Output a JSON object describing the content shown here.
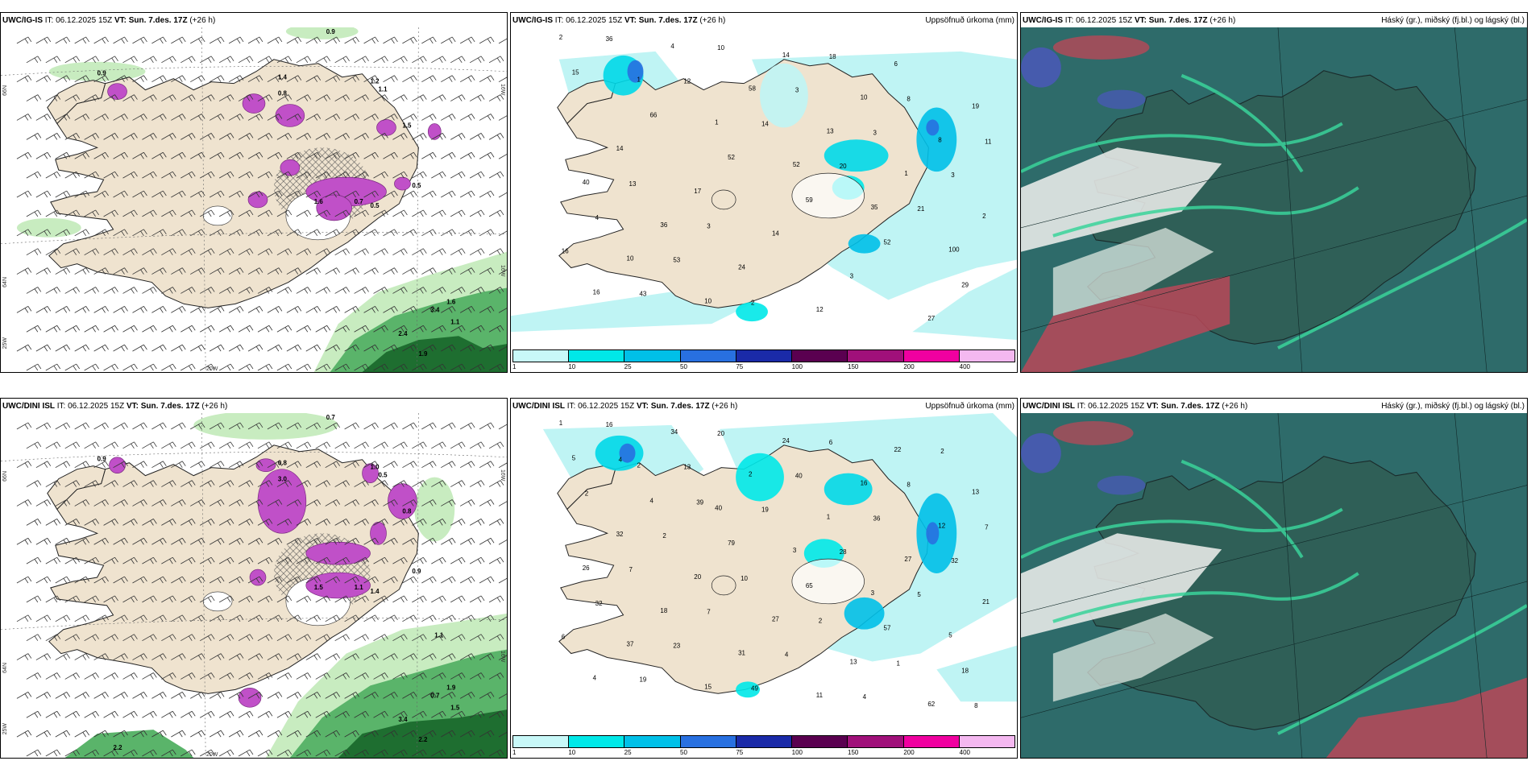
{
  "panels": [
    {
      "model": "UWC/IG-IS",
      "it_label": "IT:",
      "it_value": "06.12.2025 15Z",
      "vt_label": "VT:",
      "vt_value": "Sun. 7.des. 17Z",
      "lead": "(+26 h)",
      "right_title": "",
      "kind": "wind",
      "grid_labels": {
        "left_top": "66N",
        "left_mid": "64N",
        "left_bot": "25W",
        "bottom": "20W",
        "right_top": "16W",
        "right_mid": "16W"
      },
      "values": [
        "0.9",
        "0.9",
        "1.4",
        "1.2",
        "0.8",
        "1.1",
        "1.5",
        "0.5",
        "0.7",
        "1.6",
        "0.5",
        "3.4",
        "2.4",
        "1.9",
        "1.6",
        "1.1"
      ]
    },
    {
      "model": "UWC/IG-IS",
      "it_label": "IT:",
      "it_value": "06.12.2025 15Z",
      "vt_label": "VT:",
      "vt_value": "Sun. 7.des. 17Z",
      "lead": "(+26 h)",
      "right_title": "Uppsöfnuð úrkoma (mm)",
      "kind": "precip",
      "values": [
        "2",
        "1",
        "1",
        "52",
        "35",
        "100",
        "16",
        "4",
        "58",
        "13",
        "1",
        "2",
        "10",
        "10",
        "14",
        "10",
        "8",
        "40",
        "36",
        "24",
        "12",
        "6",
        "19",
        "14",
        "17",
        "14",
        "3",
        "27",
        "15",
        "66",
        "52",
        "59",
        "52",
        "29",
        "36",
        "12",
        "14",
        "20",
        "21",
        "16",
        "43",
        "10",
        "3",
        "3",
        "3",
        "4",
        "53",
        "2",
        "18",
        "8",
        "11",
        "13",
        "3"
      ]
    },
    {
      "model": "UWC/IG-IS",
      "it_label": "IT:",
      "it_value": "06.12.2025 15Z",
      "vt_label": "VT:",
      "vt_value": "Sun. 7.des. 17Z",
      "lead": "(+26 h)",
      "right_title": "Háský (gr.), miðský (fj.bl.) og lágský (bl.)",
      "kind": "cloud"
    },
    {
      "model": "UWC/DINI ISL",
      "it_label": "IT:",
      "it_value": "06.12.2025 15Z",
      "vt_label": "VT:",
      "vt_value": "Sun. 7.des. 17Z",
      "lead": "(+26 h)",
      "right_title": "",
      "kind": "wind",
      "grid_labels": {
        "left_top": "66N",
        "left_mid": "64N",
        "left_bot": "25W",
        "bottom": "20W",
        "right_top": "16W",
        "right_mid": "16W"
      },
      "values": [
        "0.7",
        "0.9",
        "0.8",
        "1.0",
        "3.0",
        "0.5",
        "0.8",
        "0.9",
        "1.1",
        "1.5",
        "1.4",
        "0.7",
        "3.4",
        "2.2",
        "1.9",
        "1.5",
        "2.2",
        "1.1"
      ]
    },
    {
      "model": "UWC/DINI ISL",
      "it_label": "IT:",
      "it_value": "06.12.2025 15Z",
      "vt_label": "VT:",
      "vt_value": "Sun. 7.des. 17Z",
      "lead": "(+26 h)",
      "right_title": "Uppsöfnuð úrkoma (mm)",
      "kind": "precip",
      "values": [
        "1",
        "2",
        "40",
        "3",
        "3",
        "5",
        "4",
        "34",
        "2",
        "1",
        "27",
        "21",
        "37",
        "15",
        "24",
        "16",
        "12",
        "26",
        "18",
        "31",
        "11",
        "22",
        "13",
        "32",
        "20",
        "27",
        "13",
        "62",
        "5",
        "4",
        "79",
        "65",
        "57",
        "18",
        "16",
        "13",
        "19",
        "28",
        "5",
        "6",
        "19",
        "20",
        "40",
        "36",
        "32",
        "32",
        "23",
        "49",
        "6",
        "8",
        "7",
        "7",
        "7",
        "4",
        "4",
        "2",
        "2",
        "2",
        "10",
        "2",
        "1",
        "8",
        "4",
        "39"
      ]
    },
    {
      "model": "UWC/DINI ISL",
      "it_label": "IT:",
      "it_value": "06.12.2025 15Z",
      "vt_label": "VT:",
      "vt_value": "Sun. 7.des. 17Z",
      "lead": "(+26 h)",
      "right_title": "Háský (gr.), miðský (fj.bl.) og lágský (bl.)",
      "kind": "cloud"
    }
  ],
  "colorbar": {
    "labels": [
      "1",
      "10",
      "25",
      "50",
      "75",
      "100",
      "150",
      "200",
      "400"
    ],
    "colors": [
      "#c8f8f8",
      "#00e8e8",
      "#00c0e8",
      "#2870e0",
      "#1a2aa8",
      "#5a0050",
      "#a0107a",
      "#f000a0",
      "#f4b8f0"
    ]
  },
  "colors": {
    "land": "#efe3cf",
    "wind_green_light": "#c8ecc0",
    "wind_green": "#5ab46a",
    "wind_green_dark": "#1e6e30",
    "purple": "#c050c8",
    "cyan_light": "#bff4f4",
    "cloud_base": "#2e6b6a",
    "cloud_green": "#3ad39a",
    "cloud_red": "#b84858",
    "cloud_blue": "#4a58b8"
  }
}
